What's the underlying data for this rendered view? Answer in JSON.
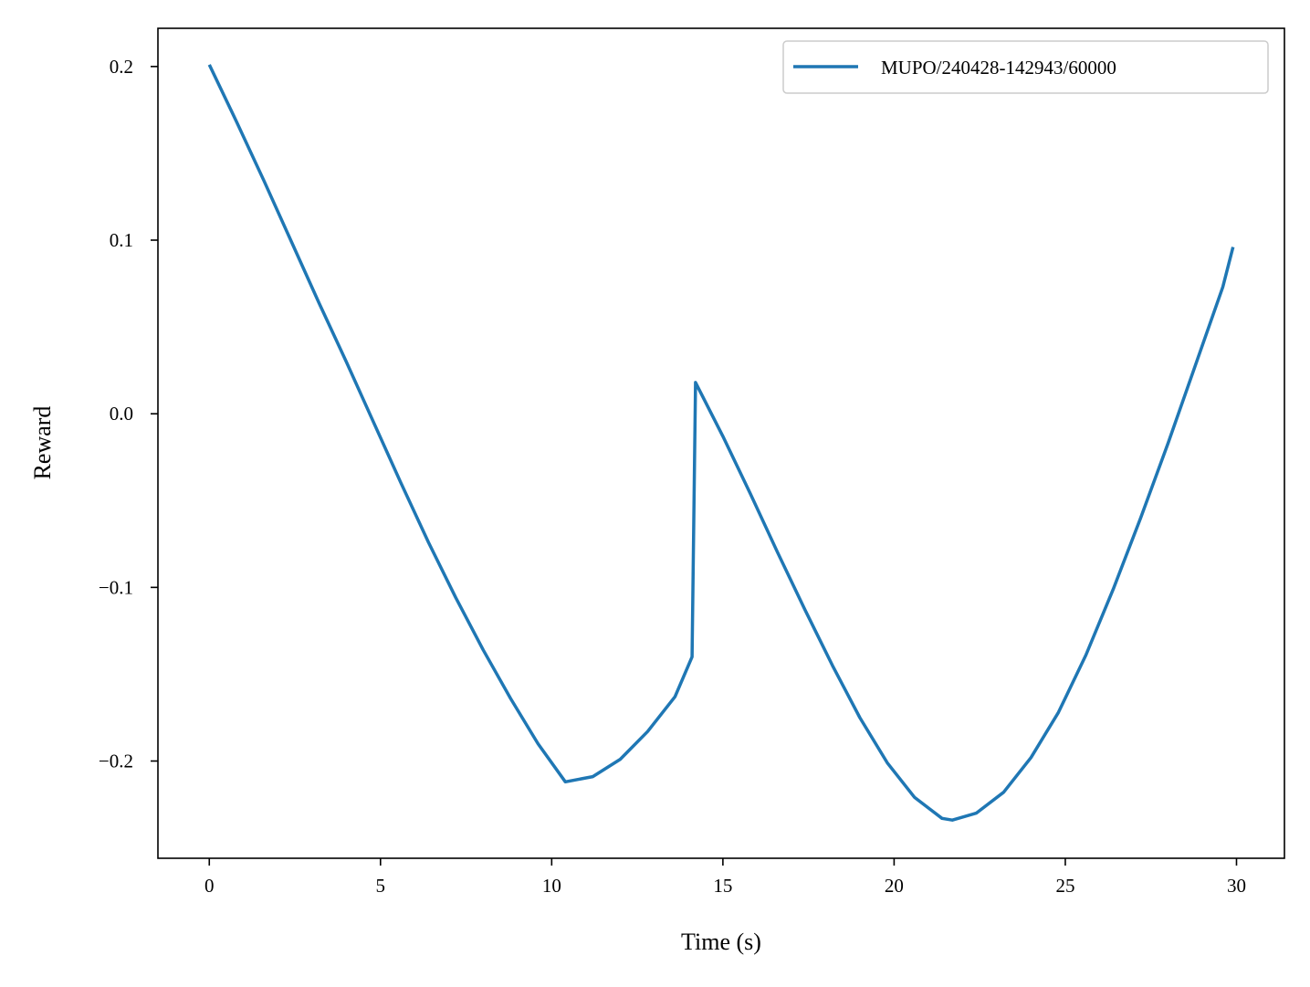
{
  "chart_data": {
    "type": "line",
    "title": "",
    "xlabel": "Time (s)",
    "ylabel": "Reward",
    "xlim": [
      -1.5,
      31.4
    ],
    "ylim": [
      -0.256,
      0.222
    ],
    "xticks": [
      0,
      5,
      10,
      15,
      20,
      25,
      30
    ],
    "xtick_labels": [
      "0",
      "5",
      "10",
      "15",
      "20",
      "25",
      "30"
    ],
    "yticks": [
      -0.2,
      -0.1,
      0.0,
      0.1,
      0.2
    ],
    "ytick_labels": [
      "−0.2",
      "−0.1",
      "0.0",
      "0.1",
      "0.2"
    ],
    "grid": false,
    "legend_position": "top-right",
    "series": [
      {
        "name": "MUPO/240428-142943/60000",
        "color": "#1f77b4",
        "x": [
          0,
          0.8,
          1.6,
          2.4,
          3.2,
          4.0,
          4.8,
          5.6,
          6.4,
          7.2,
          8.0,
          8.8,
          9.6,
          10.4,
          11.2,
          12.0,
          12.8,
          13.6,
          14.1,
          14.2,
          15.0,
          15.8,
          16.6,
          17.4,
          18.2,
          19.0,
          19.8,
          20.6,
          21.4,
          21.7,
          22.4,
          23.2,
          24.0,
          24.8,
          25.6,
          26.4,
          27.2,
          28.0,
          28.8,
          29.6,
          29.9
        ],
        "y": [
          0.201,
          0.168,
          0.134,
          0.099,
          0.064,
          0.03,
          -0.005,
          -0.04,
          -0.074,
          -0.106,
          -0.136,
          -0.164,
          -0.19,
          -0.212,
          -0.209,
          -0.199,
          -0.183,
          -0.163,
          -0.14,
          0.018,
          -0.013,
          -0.046,
          -0.08,
          -0.113,
          -0.145,
          -0.175,
          -0.201,
          -0.221,
          -0.233,
          -0.234,
          -0.23,
          -0.218,
          -0.198,
          -0.172,
          -0.139,
          -0.101,
          -0.06,
          -0.017,
          0.028,
          0.073,
          0.096
        ]
      }
    ]
  }
}
